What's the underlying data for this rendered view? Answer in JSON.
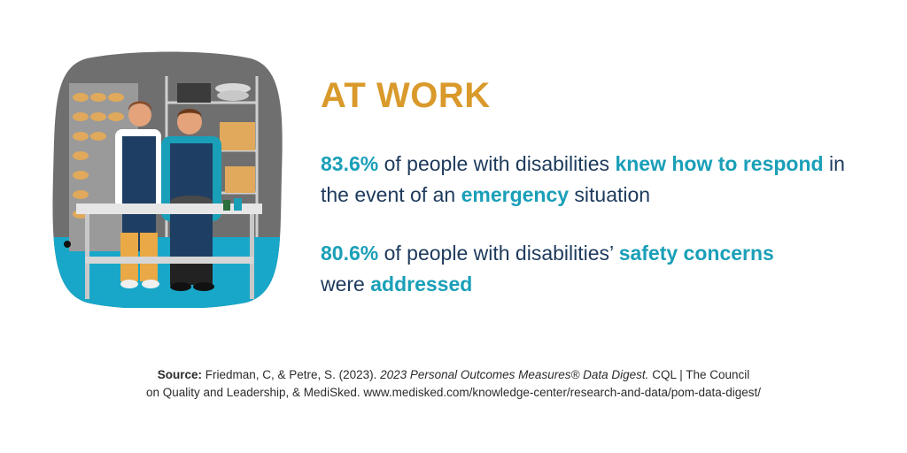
{
  "heading": "AT WORK",
  "colors": {
    "heading": "#d99a2b",
    "highlight": "#1a9fb8",
    "body": "#1d3a5c"
  },
  "stats": [
    {
      "value": "83.6%",
      "t1": " of people with disabilities ",
      "h1": "knew how to respond",
      "t2": " in the event of an ",
      "h2": "emergency",
      "t3": " situation"
    },
    {
      "value": "80.6%",
      "t1": " of people with disabilities’ ",
      "h1": "safety concerns",
      "t2": " were ",
      "h2": "addressed"
    }
  ],
  "source": {
    "label": "Source:",
    "authors": " Friedman, C, & Petre, S. (2023). ",
    "title": "2023 Personal Outcomes Measures® Data Digest.",
    "line1_rest": " CQL | The Council",
    "line2": "on Quality and Leadership, & MediSked. www.medisked.com/knowledge-center/research-and-data/pom-data-digest/"
  },
  "illustration": {
    "icons": [
      "bread-rack-icon",
      "baker-left-icon",
      "baker-right-icon",
      "table-icon",
      "pot-icon",
      "box-icon"
    ]
  }
}
